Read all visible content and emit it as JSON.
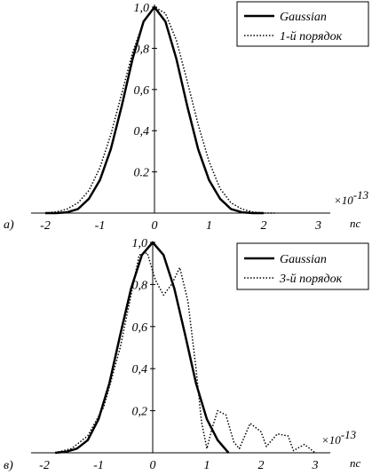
{
  "chart_data": [
    {
      "type": "line",
      "panel_label": "а)",
      "xunit": "пс",
      "multiplier": "×10",
      "multiplier_exp": "-13",
      "xticks": [
        -2,
        -1,
        0,
        1,
        2,
        3
      ],
      "xtick_labels": [
        "-2",
        "-1",
        "0",
        "1",
        "2",
        "3"
      ],
      "yticks": [
        0.2,
        0.4,
        0.6,
        0.8,
        1.0
      ],
      "ytick_labels": [
        "0.2",
        "0,4",
        "0,6",
        "0,8",
        "1,0"
      ],
      "xlim": [
        -2.2,
        3.5
      ],
      "ylim": [
        0,
        1.0
      ],
      "legend_position": "top-right",
      "grid": false,
      "series": [
        {
          "name": "Gaussian",
          "style": "solid",
          "x": [
            -2.0,
            -1.8,
            -1.6,
            -1.4,
            -1.2,
            -1.0,
            -0.8,
            -0.6,
            -0.4,
            -0.2,
            0.0,
            0.2,
            0.4,
            0.6,
            0.8,
            1.0,
            1.2,
            1.4,
            1.6,
            1.8,
            2.0
          ],
          "y": [
            0.0,
            0.0,
            0.004,
            0.02,
            0.07,
            0.16,
            0.31,
            0.52,
            0.75,
            0.93,
            1.0,
            0.93,
            0.75,
            0.52,
            0.31,
            0.16,
            0.07,
            0.02,
            0.004,
            0.0,
            0.0
          ]
        },
        {
          "name": "1-й порядок",
          "style": "dotted",
          "x": [
            -2.0,
            -1.8,
            -1.6,
            -1.4,
            -1.2,
            -1.0,
            -0.8,
            -0.6,
            -0.4,
            -0.2,
            0.0,
            0.2,
            0.4,
            0.6,
            0.8,
            1.0,
            1.2,
            1.4,
            1.6,
            1.8,
            2.0,
            2.2
          ],
          "y": [
            0.0,
            0.006,
            0.02,
            0.05,
            0.11,
            0.22,
            0.38,
            0.58,
            0.78,
            0.93,
            1.0,
            0.97,
            0.84,
            0.64,
            0.43,
            0.25,
            0.12,
            0.05,
            0.02,
            0.005,
            0.0,
            0.0
          ]
        }
      ]
    },
    {
      "type": "line",
      "panel_label": "в)",
      "xunit": "пс",
      "multiplier": "×10",
      "multiplier_exp": "-13",
      "xticks": [
        -2,
        -1,
        0,
        1,
        2,
        3
      ],
      "xtick_labels": [
        "-2",
        "-1",
        "0",
        "1",
        "2",
        "3"
      ],
      "yticks": [
        0.2,
        0.4,
        0.6,
        0.8,
        1.0
      ],
      "ytick_labels": [
        "0,2",
        "0,4",
        "0,6",
        "0,8",
        "1,0"
      ],
      "xlim": [
        -2.2,
        3.5
      ],
      "ylim": [
        0,
        1.0
      ],
      "legend_position": "top-right",
      "grid": false,
      "series": [
        {
          "name": "Gaussian",
          "style": "solid",
          "x": [
            -1.8,
            -1.6,
            -1.4,
            -1.2,
            -1.0,
            -0.8,
            -0.6,
            -0.4,
            -0.2,
            0.0,
            0.2,
            0.4,
            0.6,
            0.8,
            1.0,
            1.2,
            1.4
          ],
          "y": [
            0.0,
            0.005,
            0.02,
            0.06,
            0.16,
            0.33,
            0.56,
            0.78,
            0.94,
            1.0,
            0.94,
            0.78,
            0.56,
            0.33,
            0.16,
            0.06,
            0.0
          ]
        },
        {
          "name": "3-й порядок",
          "style": "dotted",
          "x": [
            -1.8,
            -1.5,
            -1.2,
            -0.9,
            -0.6,
            -0.4,
            -0.25,
            -0.1,
            0.05,
            0.2,
            0.35,
            0.5,
            0.65,
            0.8,
            0.9,
            1.0,
            1.1,
            1.2,
            1.35,
            1.5,
            1.6,
            1.8,
            2.0,
            2.1,
            2.3,
            2.5,
            2.6,
            2.8,
            3.0
          ],
          "y": [
            0.0,
            0.02,
            0.08,
            0.22,
            0.5,
            0.75,
            0.94,
            0.95,
            0.82,
            0.75,
            0.8,
            0.88,
            0.72,
            0.4,
            0.15,
            0.02,
            0.12,
            0.2,
            0.18,
            0.05,
            0.02,
            0.14,
            0.1,
            0.03,
            0.09,
            0.08,
            0.01,
            0.04,
            0.0
          ]
        }
      ]
    }
  ]
}
